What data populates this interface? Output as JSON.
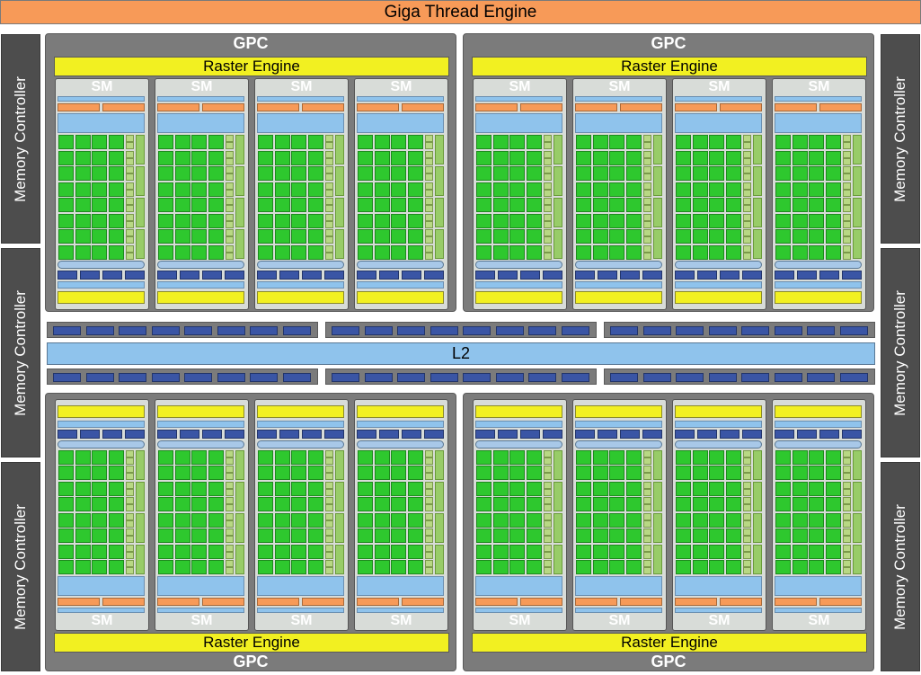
{
  "giga_thread_engine": "Giga Thread Engine",
  "memory_controller_label": "Memory Controller",
  "memory_controllers": [
    {
      "side": "left",
      "label": "Memory Controller"
    },
    {
      "side": "left",
      "label": "Memory Controller"
    },
    {
      "side": "left",
      "label": "Memory Controller"
    },
    {
      "side": "right",
      "label": "Memory Controller"
    },
    {
      "side": "right",
      "label": "Memory Controller"
    },
    {
      "side": "right",
      "label": "Memory Controller"
    }
  ],
  "l2_label": "L2",
  "gpc_label": "GPC",
  "raster_engine_label": "Raster Engine",
  "sm_label": "SM",
  "gpcs": [
    {
      "position": "top-left",
      "label": "GPC",
      "raster": "Raster Engine",
      "sm_count": 4
    },
    {
      "position": "top-right",
      "label": "GPC",
      "raster": "Raster Engine",
      "sm_count": 4
    },
    {
      "position": "bottom-left",
      "label": "GPC",
      "raster": "Raster Engine",
      "sm_count": 4
    },
    {
      "position": "bottom-right",
      "label": "GPC",
      "raster": "Raster Engine",
      "sm_count": 4
    }
  ],
  "colors": {
    "giga_thread": "#f79a58",
    "memory_controller": "#4d4d4d",
    "gpc": "#7b7b7b",
    "raster_engine": "#f2f021",
    "l2": "#8fc3ec",
    "core": "#2ec82e",
    "load_store": "#b8d884",
    "interconnect": "#3a55a5"
  }
}
